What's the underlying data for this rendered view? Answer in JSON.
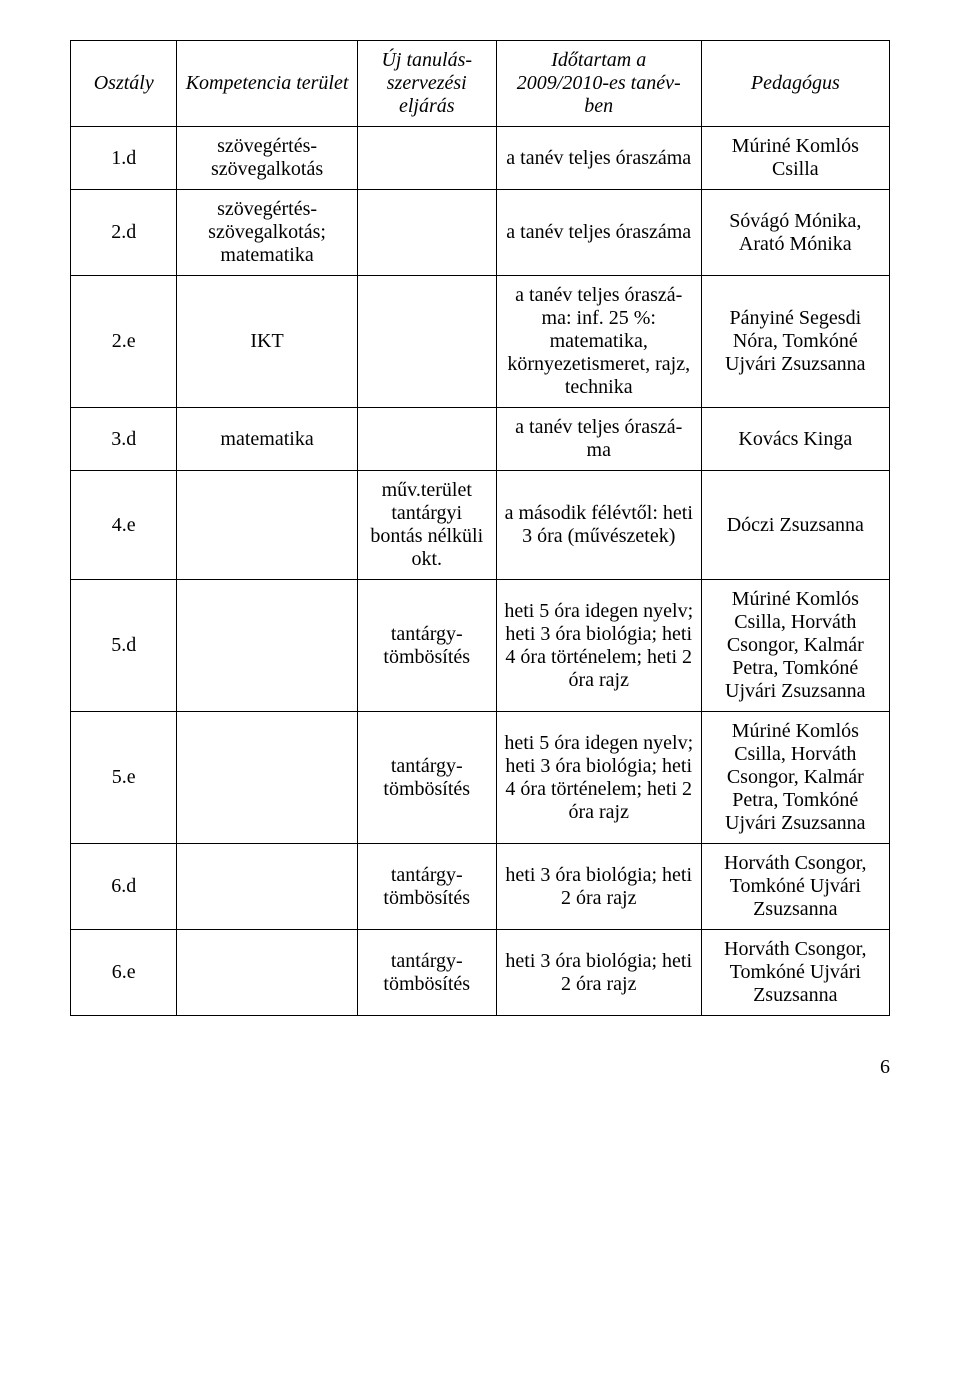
{
  "table": {
    "headers": {
      "col1": "Osztály",
      "col2": "Kompetencia\nterület",
      "col3": "Új\ntanulás-\nszervezési\neljárás",
      "col4": "Időtartam a\n2009/2010-es tanév-\nben",
      "col5": "Pedagógus"
    },
    "rows": [
      {
        "c1": "1.d",
        "c2": "szövegértés-\nszövegalkotás",
        "c3": "",
        "c4": "a tanév teljes\nóraszáma",
        "c5": "Múriné\nKomlós Csilla"
      },
      {
        "c1": "2.d",
        "c2": "szövegértés-\nszövegalkotás;\nmatematika",
        "c3": "",
        "c4": "a tanév teljes\nóraszáma",
        "c5": "Sóvágó Mónika,\nArató Mónika"
      },
      {
        "c1": "2.e",
        "c2": "IKT",
        "c3": "",
        "c4": "a tanév teljes óraszá-\nma: inf.\n25 %: matematika,\nkörnyezetismeret,\nrajz, technika",
        "c5": "Pányiné\nSegesdi Nóra,\nTomkóné\nUjvári Zsuzsanna"
      },
      {
        "c1": "3.d",
        "c2": "matematika",
        "c3": "",
        "c4": "a tanév teljes óraszá-\nma",
        "c5": "Kovács Kinga"
      },
      {
        "c1": "4.e",
        "c2": "",
        "c3": "műv.terület\ntantárgyi\nbontás\nnélküli okt.",
        "c4": "a második félévtől:\nheti 3 óra\n(művészetek)",
        "c5": "Dóczi Zsuzsanna"
      },
      {
        "c1": "5.d",
        "c2": "",
        "c3": "tantárgy-\ntömbösítés",
        "c4": "heti 5 óra\nidegen nyelv;\nheti 3 óra biológia;\nheti 4 óra történelem;\nheti 2 óra rajz",
        "c5": "Múriné\nKomlós Csilla,\nHorváth Csongor,\nKalmár Petra,\nTomkóné\nUjvári Zsuzsanna"
      },
      {
        "c1": "5.e",
        "c2": "",
        "c3": "tantárgy-\ntömbösítés",
        "c4": "heti 5 óra\nidegen nyelv;\nheti 3 óra biológia;\nheti 4 óra történelem;\nheti 2 óra rajz",
        "c5": "Múriné\nKomlós Csilla,\nHorváth Csongor,\nKalmár Petra,\nTomkóné\nUjvári Zsuzsanna"
      },
      {
        "c1": "6.d",
        "c2": "",
        "c3": "tantárgy-\ntömbösítés",
        "c4": "heti 3 óra biológia;\nheti 2 óra rajz",
        "c5": "Horváth Csongor,\nTomkóné\nUjvári Zsuzsanna"
      },
      {
        "c1": "6.e",
        "c2": "",
        "c3": "tantárgy-\ntömbösítés",
        "c4": "heti 3 óra biológia;\nheti 2 óra rajz",
        "c5": "Horváth Csongor,\nTomkóné\nUjvári Zsuzsanna"
      }
    ]
  },
  "page_number": "6"
}
